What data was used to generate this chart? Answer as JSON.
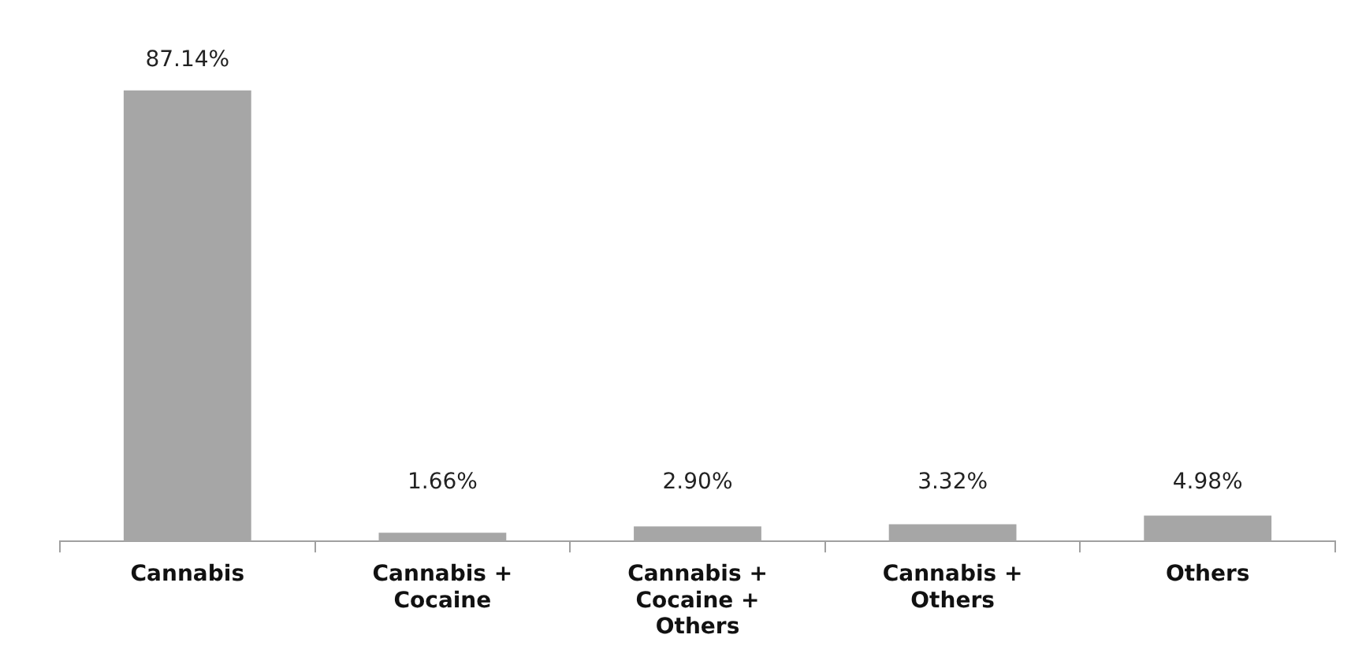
{
  "chart_data": {
    "type": "bar",
    "categories": [
      "Cannabis",
      "Cannabis + Cocaine",
      "Cannabis + Cocaine + Others",
      "Cannabis + Others",
      "Others"
    ],
    "values": [
      87.14,
      1.66,
      2.9,
      3.32,
      4.98
    ],
    "value_labels": [
      "87.14%",
      "1.66%",
      "2.90%",
      "3.32%",
      "4.98%"
    ],
    "color": "#a6a6a6",
    "grid": false,
    "legend": false
  }
}
